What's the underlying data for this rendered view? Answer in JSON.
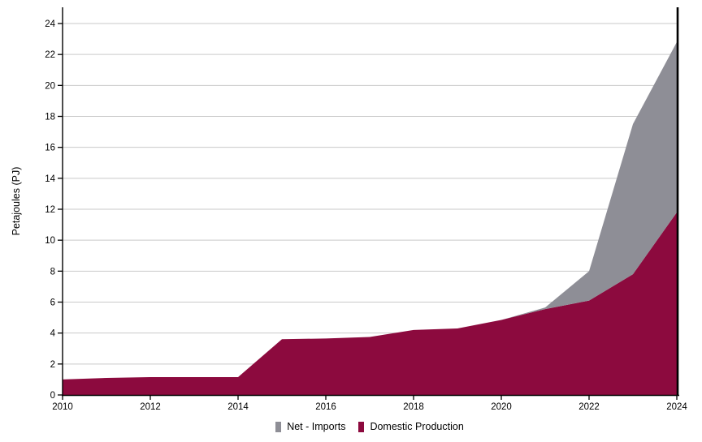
{
  "chart_data": {
    "type": "area",
    "stacked": true,
    "title": "",
    "xlabel": "",
    "ylabel": "Petajoules (PJ)",
    "x": [
      2010,
      2011,
      2012,
      2013,
      2014,
      2015,
      2016,
      2017,
      2018,
      2019,
      2020,
      2021,
      2022,
      2023,
      2024
    ],
    "series": [
      {
        "name": "Domestic Production",
        "color": "#8C0A3E",
        "values": [
          1.0,
          1.1,
          1.15,
          1.15,
          1.15,
          3.6,
          3.65,
          3.75,
          4.2,
          4.3,
          4.85,
          5.55,
          6.1,
          7.8,
          11.8
        ]
      },
      {
        "name": "Net - Imports",
        "color": "#8E8E96",
        "values": [
          0,
          0,
          0,
          0,
          0,
          0,
          0,
          0,
          0,
          0,
          0,
          0.1,
          1.9,
          9.7,
          11.0
        ]
      }
    ],
    "ylim": [
      0,
      25.05
    ],
    "xlim": [
      2010,
      2024
    ],
    "yticks": [
      0,
      2,
      4,
      6,
      8,
      10,
      12,
      14,
      16,
      18,
      20,
      22,
      24
    ],
    "xticks": [
      2010,
      2012,
      2014,
      2016,
      2018,
      2020,
      2022,
      2024
    ],
    "grid": "horizontal-only",
    "legend_position": "bottom-center",
    "end_marker_year": 2024,
    "legend": [
      {
        "label": "Net - Imports",
        "color": "#8E8E96"
      },
      {
        "label": "Domestic Production",
        "color": "#8C0A3E"
      }
    ],
    "colors": {
      "gridline": "#C9C9C9",
      "axis": "#000000",
      "tick_text": "#000000",
      "background": "#FFFFFF"
    }
  }
}
